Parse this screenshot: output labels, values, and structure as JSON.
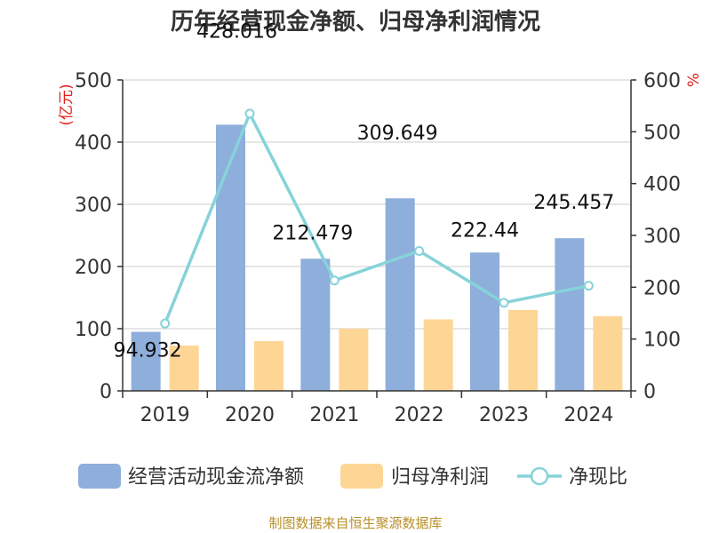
{
  "chart_data": {
    "type": "bar",
    "title": "历年经营现金净额、归母净利润情况",
    "categories": [
      "2019",
      "2020",
      "2021",
      "2022",
      "2023",
      "2024"
    ],
    "y_left": {
      "unit": "(亿元)",
      "ylim": [
        0,
        500
      ],
      "ticks": [
        0,
        100,
        200,
        300,
        400,
        500
      ]
    },
    "y_right": {
      "unit": "%",
      "ylim": [
        0,
        600
      ],
      "ticks": [
        0,
        100,
        200,
        300,
        400,
        500,
        600
      ]
    },
    "series": [
      {
        "name": "经营活动现金流净额",
        "kind": "bar",
        "axis": "left",
        "color": "#8eaedb",
        "values": [
          94.932,
          428.016,
          212.479,
          309.649,
          222.44,
          245.457
        ],
        "labels": [
          "94.932",
          "428.016",
          "212.479",
          "309.649",
          "222.44",
          "245.457"
        ]
      },
      {
        "name": "归母净利润",
        "kind": "bar",
        "axis": "left",
        "color": "#fdd696",
        "values": [
          73,
          80,
          100,
          115,
          130,
          120
        ]
      },
      {
        "name": "净现比",
        "kind": "line",
        "axis": "right",
        "color": "#86d3d9",
        "values": [
          130,
          535,
          213,
          270,
          170,
          203
        ]
      }
    ],
    "grid": true,
    "legend_position": "bottom"
  },
  "source": "制图数据来自恒生聚源数据库"
}
